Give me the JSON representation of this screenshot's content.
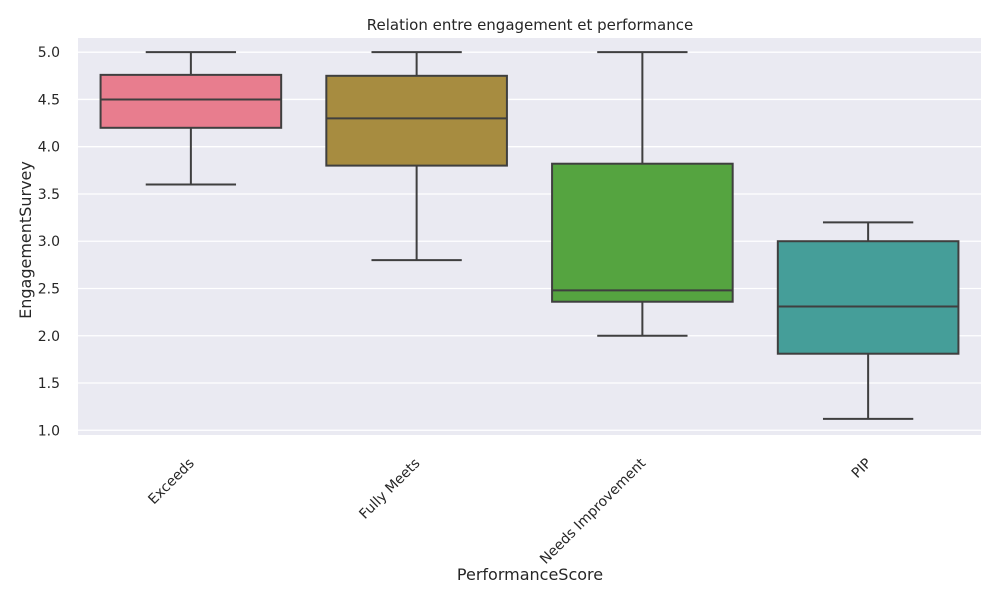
{
  "chart_data": {
    "type": "box",
    "title": "Relation entre engagement et performance",
    "xlabel": "PerformanceScore",
    "ylabel": "EngagementSurvey",
    "ylim": [
      0.95,
      5.15
    ],
    "yticks": [
      1.0,
      1.5,
      2.0,
      2.5,
      3.0,
      3.5,
      4.0,
      4.5,
      5.0
    ],
    "ytick_labels": [
      "1.0",
      "1.5",
      "2.0",
      "2.5",
      "3.0",
      "3.5",
      "4.0",
      "4.5",
      "5.0"
    ],
    "grid": true,
    "background": "#eaeaf2",
    "categories": [
      "Exceeds",
      "Fully Meets",
      "Needs Improvement",
      "PIP"
    ],
    "boxes": [
      {
        "category": "Exceeds",
        "whisker_low": 3.6,
        "q1": 4.2,
        "median": 4.5,
        "q3": 4.76,
        "whisker_high": 5.0,
        "color": "#e87d8e"
      },
      {
        "category": "Fully Meets",
        "whisker_low": 2.8,
        "q1": 3.8,
        "median": 4.3,
        "q3": 4.75,
        "whisker_high": 5.0,
        "color": "#a78c40"
      },
      {
        "category": "Needs Improvement",
        "whisker_low": 2.0,
        "q1": 2.36,
        "median": 2.48,
        "q3": 3.82,
        "whisker_high": 5.0,
        "color": "#55a440"
      },
      {
        "category": "PIP",
        "whisker_low": 1.12,
        "q1": 1.81,
        "median": 2.31,
        "q3": 3.0,
        "whisker_high": 3.2,
        "color": "#459e99"
      }
    ]
  }
}
